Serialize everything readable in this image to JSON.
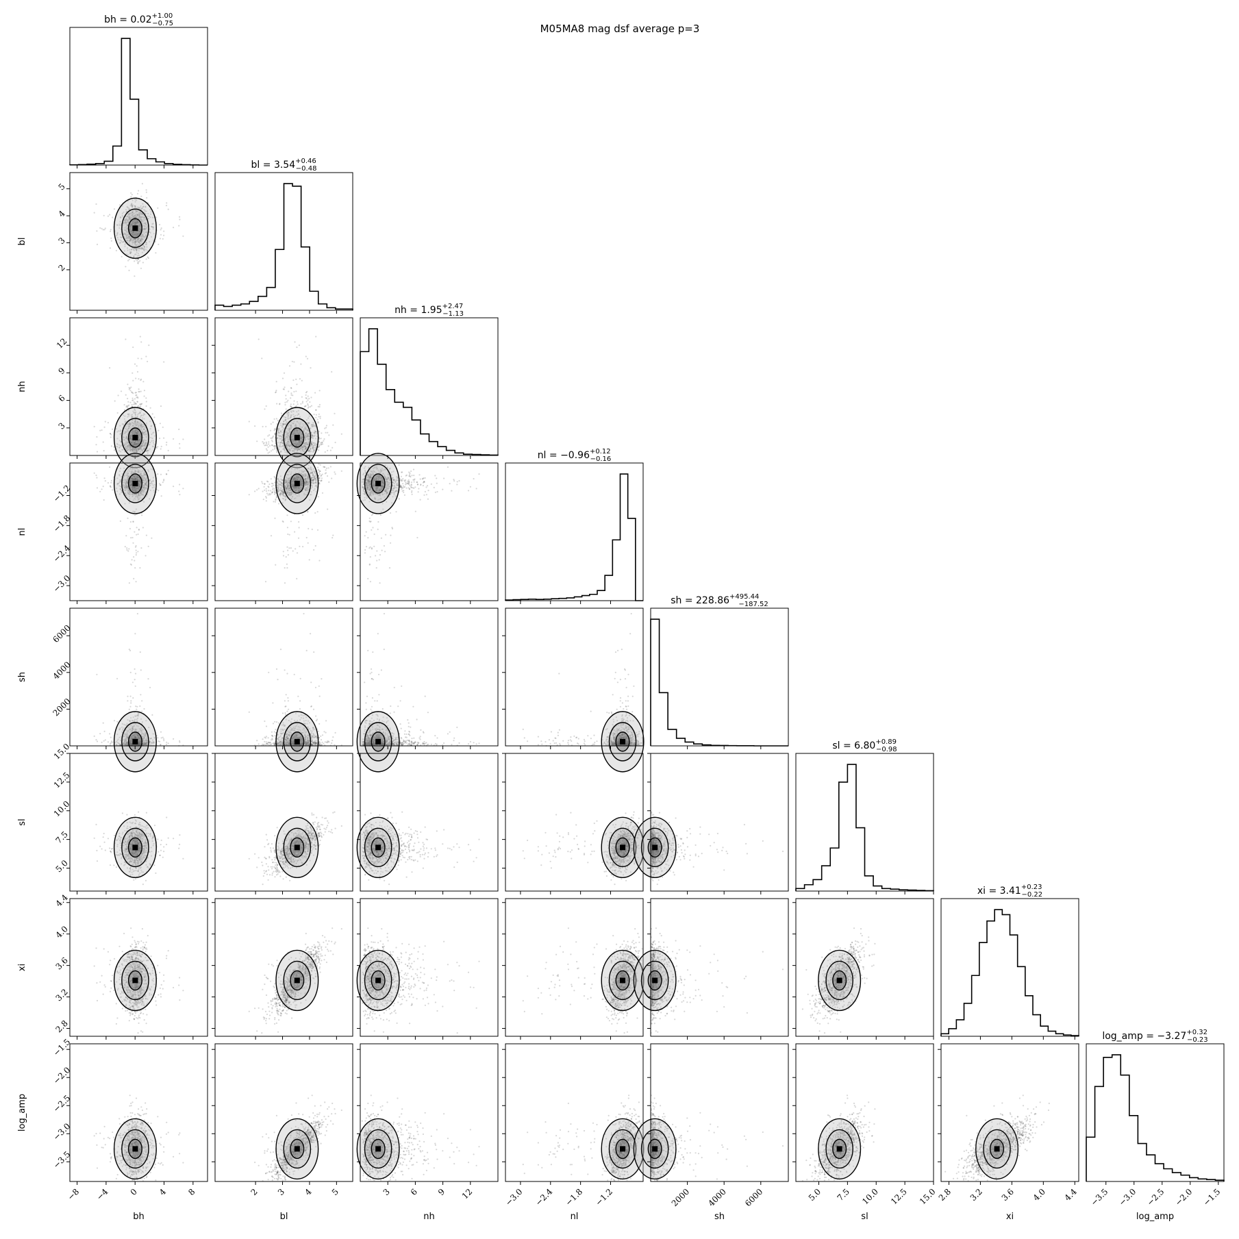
{
  "chart_data": {
    "type": "corner",
    "title": "M05MA8 mag dsf average p=3",
    "parameters": [
      {
        "name": "bh",
        "range": [
          -9,
          10
        ],
        "ticks": [
          -8,
          -4,
          0,
          4,
          8
        ],
        "tick_labels": [
          "−8",
          "−4",
          "0",
          "4",
          "8"
        ],
        "median": 0.02,
        "plus": "+1.00",
        "minus": "−0.75",
        "median_text": "0.02",
        "label_title": "bh",
        "hist": [
          0.002,
          0.004,
          0.007,
          0.012,
          0.03,
          0.15,
          1.0,
          0.52,
          0.12,
          0.05,
          0.025,
          0.012,
          0.006,
          0.003,
          0.001,
          0.0
        ]
      },
      {
        "name": "bl",
        "range": [
          0.5,
          5.6
        ],
        "ticks": [
          2,
          3,
          4,
          5
        ],
        "tick_labels": [
          "2",
          "3",
          "4",
          "5"
        ],
        "median": 3.54,
        "plus": "+0.46",
        "minus": "−0.48",
        "median_text": "3.54",
        "label_title": "bl",
        "hist": [
          0.04,
          0.03,
          0.04,
          0.05,
          0.07,
          0.11,
          0.18,
          0.48,
          1.0,
          0.98,
          0.5,
          0.15,
          0.05,
          0.02,
          0.01,
          0.01
        ]
      },
      {
        "name": "nh",
        "range": [
          0,
          15
        ],
        "ticks": [
          3,
          6,
          9,
          12
        ],
        "tick_labels": [
          "3",
          "6",
          "9",
          "12"
        ],
        "median": 1.95,
        "plus": "+2.47",
        "minus": "−1.13",
        "median_text": "1.95",
        "label_title": "nh",
        "hist": [
          0.82,
          1.0,
          0.72,
          0.52,
          0.42,
          0.38,
          0.28,
          0.17,
          0.11,
          0.07,
          0.04,
          0.02,
          0.01,
          0.008,
          0.005,
          0.003
        ]
      },
      {
        "name": "nl",
        "range": [
          -3.3,
          -0.55
        ],
        "ticks": [
          -3.0,
          -2.4,
          -1.8,
          -1.2
        ],
        "tick_labels": [
          "−3.0",
          "−2.4",
          "−1.8",
          "−1.2"
        ],
        "median": -0.96,
        "plus": "+0.12",
        "minus": "−0.16",
        "median_text": "−0.96",
        "label_title": "nl",
        "hist": [
          0.005,
          0.008,
          0.01,
          0.012,
          0.01,
          0.012,
          0.015,
          0.018,
          0.022,
          0.03,
          0.04,
          0.05,
          0.08,
          0.2,
          0.48,
          1.0,
          0.65,
          0.0
        ]
      },
      {
        "name": "sh",
        "range": [
          0,
          7500
        ],
        "ticks": [
          2000,
          4000,
          6000
        ],
        "tick_labels": [
          "2000",
          "4000",
          "6000"
        ],
        "median": 228.86,
        "plus": "+495.44",
        "minus": "−187.52",
        "median_text": "228.86",
        "label_title": "sh",
        "hist": [
          1.0,
          0.42,
          0.13,
          0.06,
          0.03,
          0.015,
          0.008,
          0.004,
          0.003,
          0.002,
          0.001,
          0.001,
          0.0,
          0.0,
          0.0,
          0.0
        ]
      },
      {
        "name": "sl",
        "range": [
          3,
          15
        ],
        "ticks": [
          5.0,
          7.5,
          10.0,
          12.5,
          15.0
        ],
        "tick_labels": [
          "5.0",
          "7.5",
          "10.0",
          "12.5",
          "15.0"
        ],
        "median": 6.8,
        "plus": "+0.89",
        "minus": "−0.98",
        "median_text": "6.80",
        "label_title": "sl",
        "hist": [
          0.02,
          0.05,
          0.09,
          0.2,
          0.34,
          0.86,
          1.0,
          0.5,
          0.12,
          0.04,
          0.02,
          0.015,
          0.01,
          0.008,
          0.005,
          0.003
        ]
      },
      {
        "name": "xi",
        "range": [
          2.7,
          4.45
        ],
        "ticks": [
          2.8,
          3.2,
          3.6,
          4.0,
          4.4
        ],
        "tick_labels": [
          "2.8",
          "3.2",
          "3.6",
          "4.0",
          "4.4"
        ],
        "median": 3.41,
        "plus": "+0.23",
        "minus": "−0.22",
        "median_text": "3.41",
        "label_title": "xi",
        "hist": [
          0.02,
          0.06,
          0.13,
          0.26,
          0.48,
          0.74,
          0.91,
          1.0,
          0.96,
          0.8,
          0.55,
          0.32,
          0.17,
          0.08,
          0.04,
          0.02,
          0.01,
          0.005
        ]
      },
      {
        "name": "log_amp",
        "range": [
          -3.85,
          -1.4
        ],
        "ticks": [
          -3.5,
          -3.0,
          -2.5,
          -2.0,
          -1.5
        ],
        "tick_labels": [
          "−3.5",
          "−3.0",
          "−2.5",
          "−2.0",
          "−1.5"
        ],
        "median": -3.27,
        "plus": "+0.32",
        "minus": "−0.23",
        "median_text": "−3.27",
        "label_title": "log_amp",
        "hist": [
          0.35,
          0.75,
          0.98,
          1.0,
          0.84,
          0.52,
          0.3,
          0.21,
          0.14,
          0.1,
          0.07,
          0.05,
          0.03,
          0.02,
          0.015,
          0.01
        ]
      }
    ],
    "y_tick_labels": {
      "bl": [
        "2",
        "3",
        "4",
        "5"
      ],
      "nh": [
        "3",
        "6",
        "9",
        "12"
      ],
      "nl": [
        "−3.0",
        "−2.4",
        "−1.8",
        "−1.2"
      ],
      "sh": [
        "2000",
        "4000",
        "6000"
      ],
      "sl": [
        "5.0",
        "7.5",
        "10.0",
        "12.5",
        "15.0"
      ],
      "xi": [
        "2.8",
        "3.2",
        "3.6",
        "4.0",
        "4.4"
      ],
      "log_amp": [
        "−3.5",
        "−3.0",
        "−2.5",
        "−2.0",
        "−1.5"
      ]
    },
    "grid": false,
    "legend": "none",
    "scatter_color": "#000000",
    "hist_color": "#000000"
  }
}
